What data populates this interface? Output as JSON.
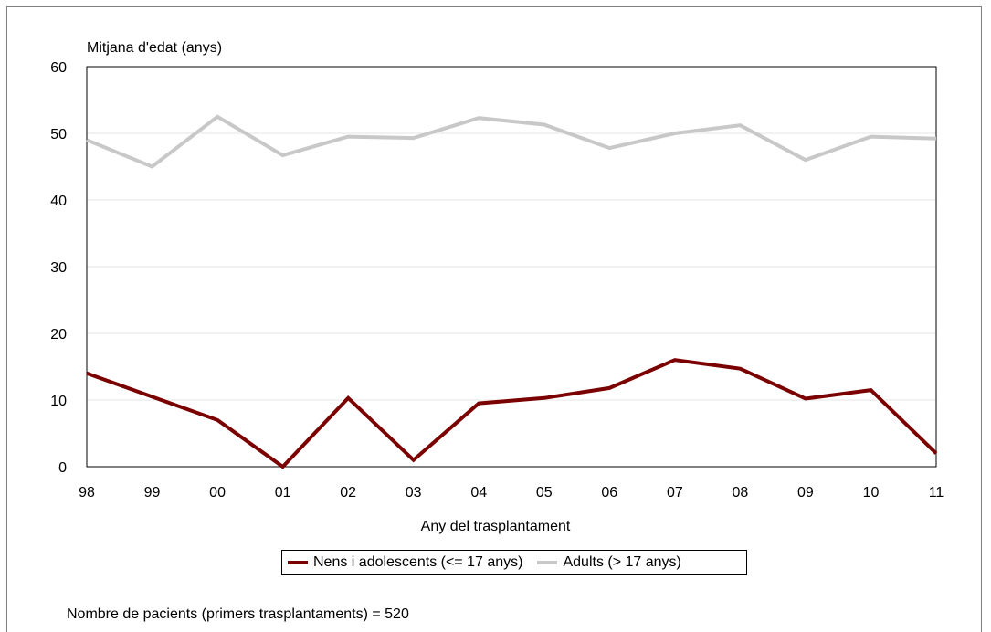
{
  "chart_data": {
    "type": "line",
    "ylabel": "Mitjana d'edat (anys)",
    "xlabel": "Any del trasplantament",
    "x": [
      "98",
      "99",
      "00",
      "01",
      "02",
      "03",
      "04",
      "05",
      "06",
      "07",
      "08",
      "09",
      "10",
      "11"
    ],
    "ylim": [
      0,
      60
    ],
    "yticks": [
      0,
      10,
      20,
      30,
      40,
      50,
      60
    ],
    "grid": true,
    "legend_position": "bottom",
    "series": [
      {
        "name": "Nens i adolescents (<= 17 anys)",
        "color": "#7b0000",
        "values": [
          14,
          10.5,
          7,
          0,
          10.3,
          1,
          9.5,
          10.3,
          11.8,
          16,
          14.7,
          10.2,
          11.5,
          2
        ]
      },
      {
        "name": "Adults (> 17 anys)",
        "color": "#c8c8c8",
        "values": [
          49,
          45,
          52.5,
          46.7,
          49.5,
          49.3,
          52.3,
          51.3,
          47.8,
          50,
          51.2,
          46,
          49.5,
          49.2
        ]
      }
    ]
  },
  "footnote": "Nombre de pacients (primers trasplantaments) = 520"
}
